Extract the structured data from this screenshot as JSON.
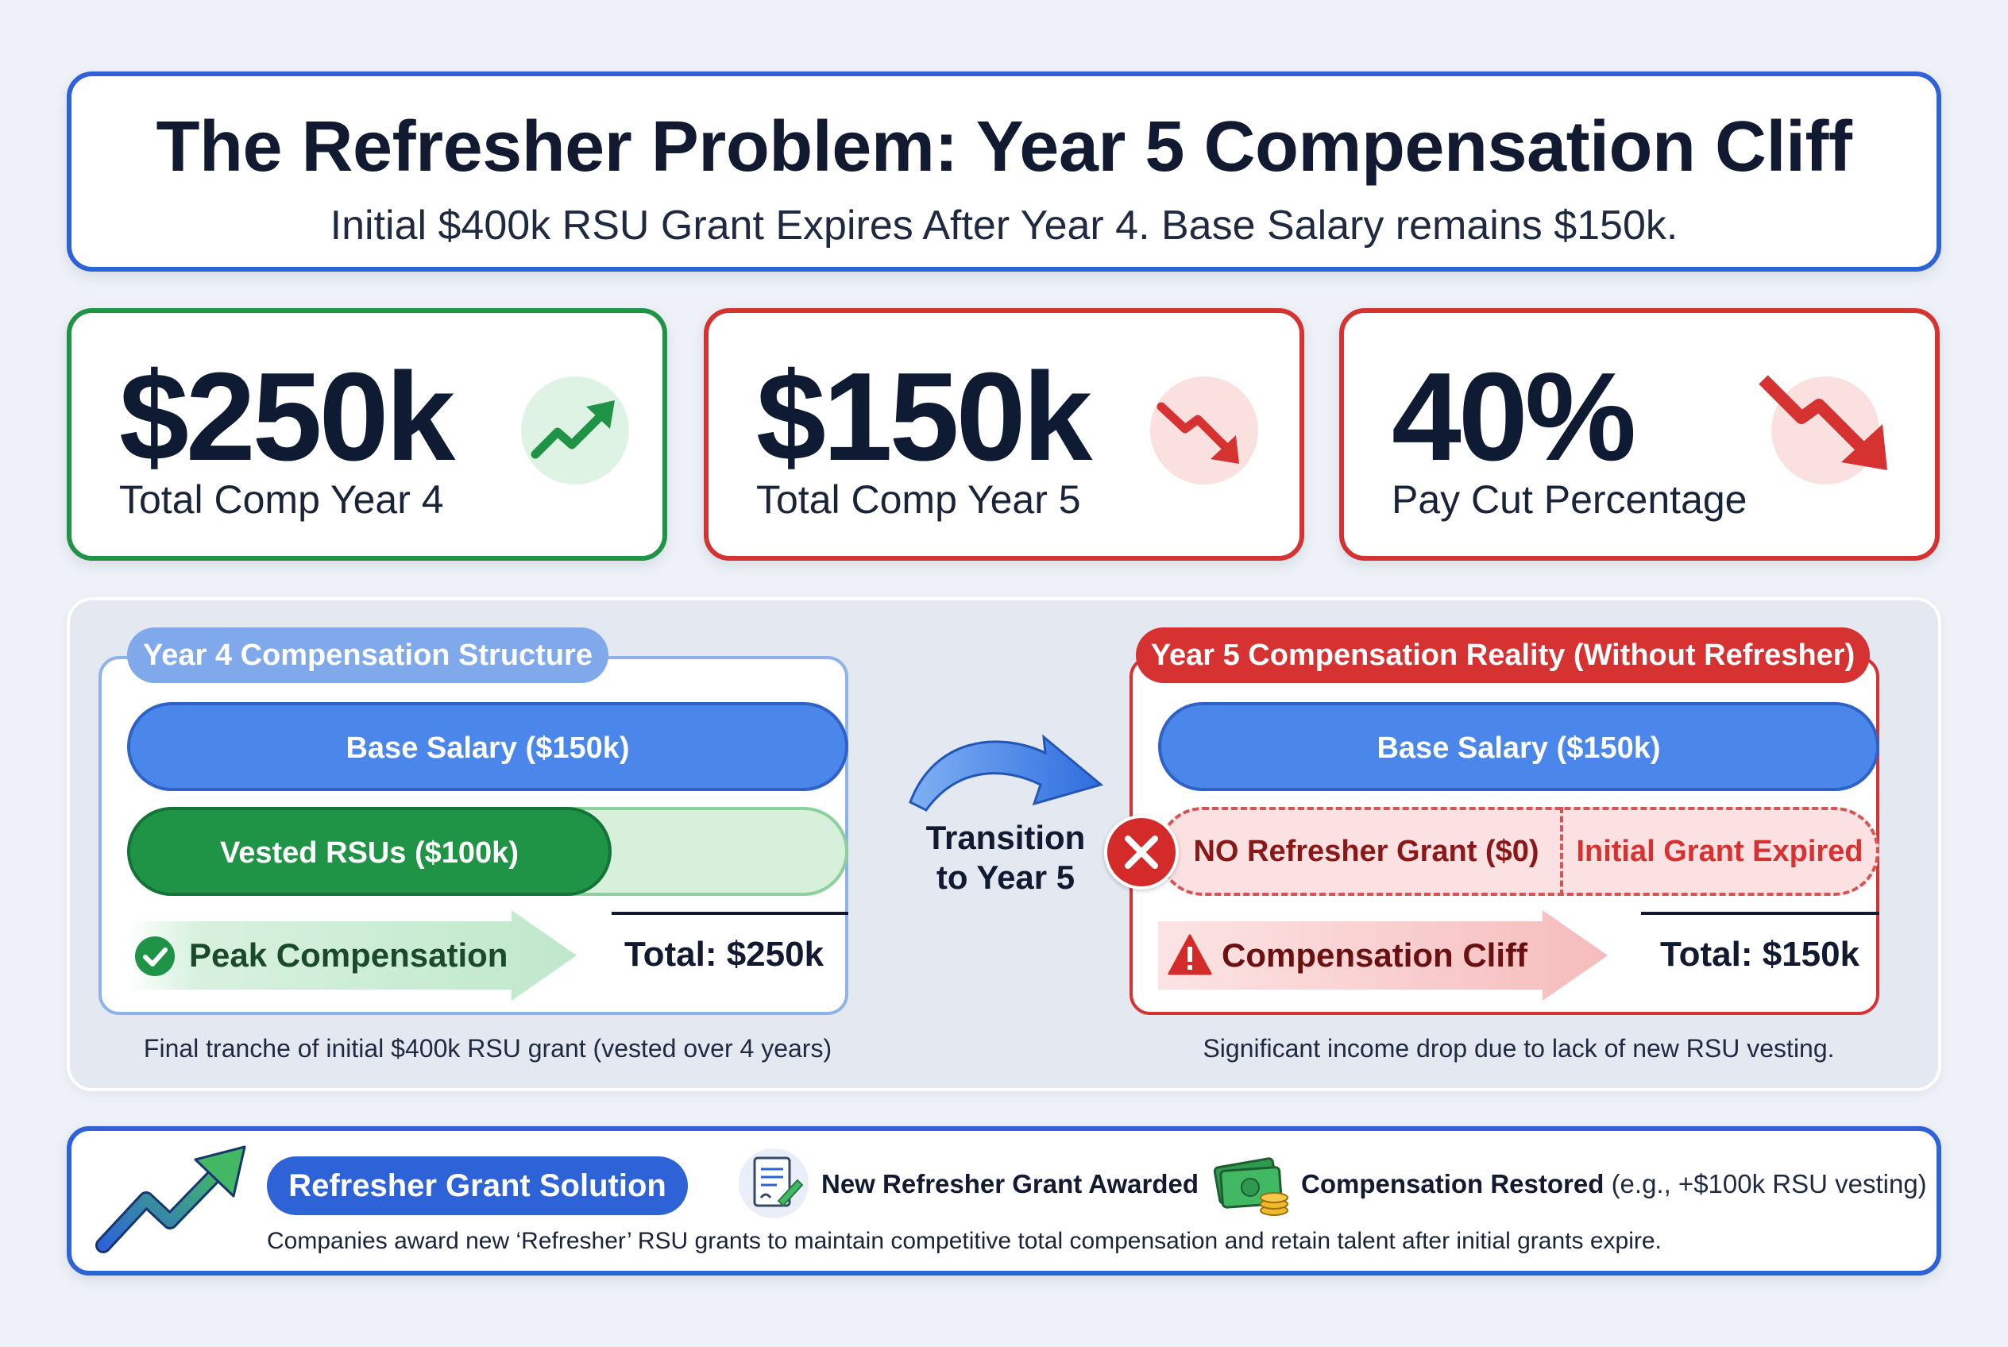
{
  "header": {
    "title": "The Refresher Problem: Year 5 Compensation Cliff",
    "subtitle": "Initial $400k RSU Grant Expires After Year 4. Base Salary remains $150k."
  },
  "stats": [
    {
      "value": "$250k",
      "label": "Total Comp Year 4",
      "icon": "trend-up-icon",
      "color": "#1f9447"
    },
    {
      "value": "$150k",
      "label": "Total Comp Year 5",
      "icon": "trend-down-icon",
      "color": "#d63232"
    },
    {
      "value": "40%",
      "label": "Pay Cut Percentage",
      "icon": "trend-down-icon",
      "color": "#d63232"
    }
  ],
  "year4": {
    "tag": "Year 4 Compensation Structure",
    "base": "Base Salary ($150k)",
    "rsus": "Vested RSUs ($100k)",
    "peak": "Peak Compensation",
    "total": "Total: $250k",
    "caption": "Final tranche of initial $400k RSU grant (vested over 4 years)"
  },
  "transition": {
    "line1": "Transition",
    "line2": "to Year 5"
  },
  "year5": {
    "tag": "Year 5 Compensation Reality (Without Refresher)",
    "base": "Base Salary ($150k)",
    "no_refresher": "NO Refresher Grant ($0)",
    "expired": "Initial Grant Expired",
    "cliff": "Compensation Cliff",
    "total": "Total: $150k",
    "caption": "Significant income drop due to lack of new RSU vesting."
  },
  "solution": {
    "label": "Refresher Grant Solution",
    "awarded": "New Refresher Grant Awarded",
    "restored": "Compensation Restored",
    "restored_note": "(e.g., +$100k RSU vesting)",
    "description": "Companies award new ‘Refresher’ RSU grants to maintain competitive total compensation and retain talent after initial grants expire."
  },
  "colors": {
    "primary_blue": "#2e63d8",
    "green": "#1f9447",
    "red": "#d63232"
  }
}
